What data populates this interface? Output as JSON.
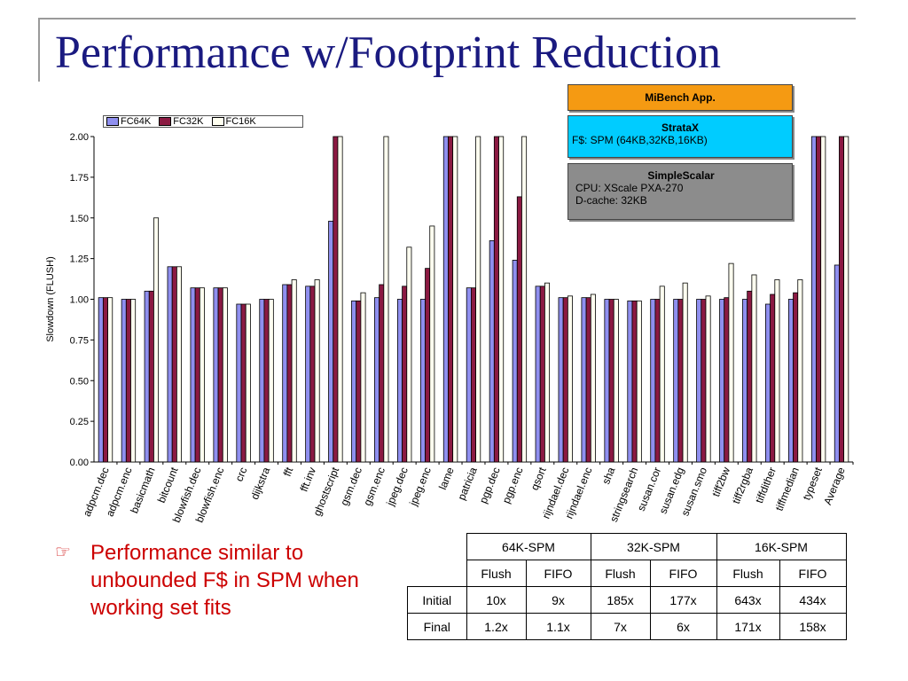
{
  "slide": {
    "title": "Performance w/Footprint Reduction",
    "bullet_marker": "☞",
    "bullet_text": "Performance similar to unbounded F$ in SPM when working set fits"
  },
  "boxes": {
    "app": {
      "title": "MiBench App."
    },
    "stratax": {
      "title": "StrataX",
      "line1": "F$:  SPM (64KB,32KB,16KB)"
    },
    "simplescalar": {
      "title": "SimpleScalar",
      "line1": "CPU: XScale PXA-270",
      "line2": "D-cache: 32KB"
    }
  },
  "table": {
    "groups": [
      "64K-SPM",
      "32K-SPM",
      "16K-SPM"
    ],
    "subheaders": [
      "Flush",
      "FIFO",
      "Flush",
      "FIFO",
      "Flush",
      "FIFO"
    ],
    "rows": [
      {
        "label": "Initial",
        "values": [
          "10x",
          "9x",
          "185x",
          "177x",
          "643x",
          "434x"
        ]
      },
      {
        "label": "Final",
        "values": [
          "1.2x",
          "1.1x",
          "7x",
          "6x",
          "171x",
          "158x"
        ]
      }
    ]
  },
  "colors": {
    "FC64K": "#8f8fef",
    "FC32K": "#8b1a42",
    "FC16K": "#fffff0",
    "title": "#1a1a80",
    "bullet": "#cc0000"
  },
  "chart_data": {
    "type": "bar",
    "title": "",
    "xlabel": "",
    "ylabel": "Slowdown (FLUSH)",
    "ylim": [
      0,
      2.0
    ],
    "yticks": [
      "0.00",
      "0.25",
      "0.50",
      "0.75",
      "1.00",
      "1.25",
      "1.50",
      "1.75",
      "2.00"
    ],
    "grid": false,
    "legend_position": "top-left",
    "categories": [
      "adpcm.dec",
      "adpcm.enc",
      "basicmath",
      "bitcount",
      "blowfish.dec",
      "blowfish.enc",
      "crc",
      "dijkstra",
      "fft",
      "fft.inv",
      "ghostscript",
      "gsm.dec",
      "gsm.enc",
      "jpeg.dec",
      "jpeg.enc",
      "lame",
      "patricia",
      "pgp.dec",
      "pgp.enc",
      "qsort",
      "rijndael.dec",
      "rijndael.enc",
      "sha",
      "stringsearch",
      "susan.cor",
      "susan.edg",
      "susan.smo",
      "tiff2bw",
      "tiff2rgba",
      "tiffdither",
      "tiffmedian",
      "typeset",
      "Average"
    ],
    "series": [
      {
        "name": "FC64K",
        "values": [
          1.01,
          1.0,
          1.05,
          1.2,
          1.07,
          1.07,
          0.97,
          1.0,
          1.09,
          1.08,
          1.48,
          0.99,
          1.01,
          1.0,
          1.0,
          2.0,
          1.07,
          1.36,
          1.24,
          1.08,
          1.01,
          1.01,
          1.0,
          0.99,
          1.0,
          1.0,
          1.0,
          1.0,
          1.0,
          0.97,
          1.0,
          2.0,
          1.21
        ]
      },
      {
        "name": "FC32K",
        "values": [
          1.01,
          1.0,
          1.05,
          1.2,
          1.07,
          1.07,
          0.97,
          1.0,
          1.09,
          1.08,
          2.0,
          0.99,
          1.09,
          1.08,
          1.19,
          2.0,
          1.07,
          2.0,
          1.63,
          1.08,
          1.01,
          1.01,
          1.0,
          0.99,
          1.0,
          1.0,
          1.0,
          1.01,
          1.05,
          1.03,
          1.04,
          2.0,
          2.0
        ]
      },
      {
        "name": "FC16K",
        "values": [
          1.01,
          1.0,
          1.5,
          1.2,
          1.07,
          1.07,
          0.97,
          1.0,
          1.12,
          1.12,
          2.0,
          1.04,
          2.0,
          1.32,
          1.45,
          2.0,
          2.0,
          2.0,
          2.0,
          1.1,
          1.02,
          1.03,
          1.0,
          0.99,
          1.08,
          1.1,
          1.02,
          1.22,
          1.15,
          1.12,
          1.12,
          2.0,
          2.0
        ]
      }
    ]
  }
}
